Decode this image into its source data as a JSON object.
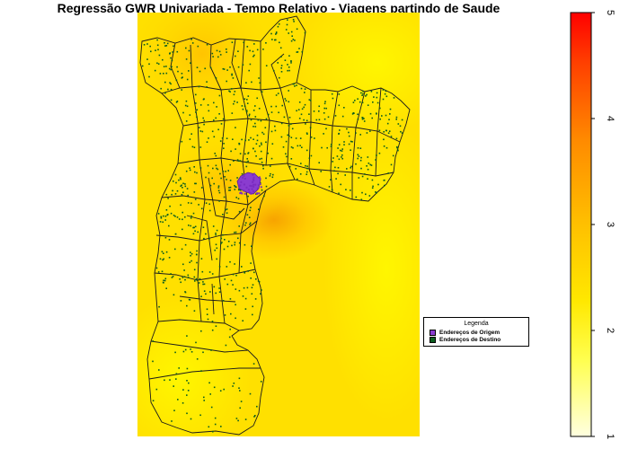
{
  "title": "Regressão GWR Univariada - Tempo Relativo - Viagens partindo de Saude",
  "map": {
    "fill_colors": [
      "#ffffc0",
      "#ffef30",
      "#ffd500",
      "#fca800",
      "#ff0000"
    ],
    "boundary_color": "#1a1a1a",
    "origin_color": "#8a3ccf",
    "destination_color": "#0b5e1e"
  },
  "legend": {
    "title": "Legenda",
    "items": [
      {
        "label": "Endereços de Origem",
        "color": "#8a3ccf"
      },
      {
        "label": "Endereços de Destino",
        "color": "#0b5e1e"
      }
    ]
  },
  "colorbar": {
    "min": 1,
    "max": 5,
    "ticks": [
      "1",
      "2",
      "3",
      "4",
      "5"
    ],
    "colors": [
      "#ffffe0",
      "#ffff30",
      "#ffd000",
      "#ff9000",
      "#ff5000",
      "#ff0000"
    ]
  }
}
